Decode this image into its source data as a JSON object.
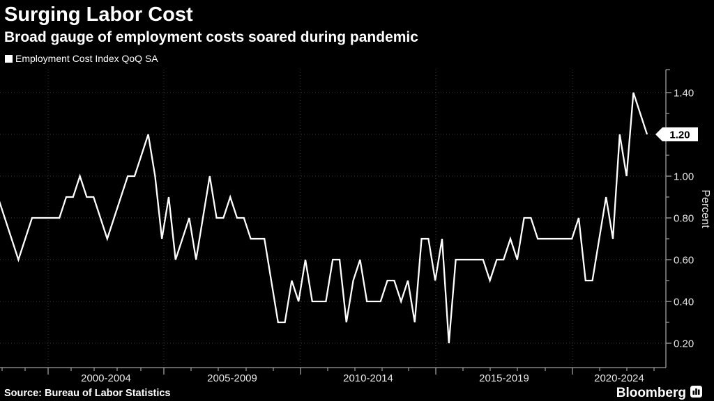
{
  "header": {
    "title": "Surging Labor Cost",
    "subtitle": "Broad gauge of employment costs soared during pandemic"
  },
  "legend": {
    "label": "Employment Cost Index QoQ SA",
    "marker_color": "#ffffff"
  },
  "footer": {
    "source": "Source: Bureau of Labor Statistics",
    "brand": "Bloomberg"
  },
  "chart_data": {
    "type": "line",
    "title": "Employment Cost Index QoQ SA",
    "ylabel": "Percent",
    "ylim": [
      0.1,
      1.47
    ],
    "grid": true,
    "legend_position": "top-left",
    "line_color": "#ffffff",
    "background_color": "#000000",
    "gridline_color": "#3d3d3d",
    "axis_color": "#a0a0a0",
    "tick_label_color": "#e6e6e6",
    "y_major_ticks": [
      "0.20",
      "0.40",
      "0.60",
      "0.80",
      "1.00",
      "1.20",
      "1.40"
    ],
    "y_major_values": [
      0.2,
      0.4,
      0.6,
      0.8,
      1.0,
      1.2,
      1.4
    ],
    "y_minor_values": [
      0.3,
      0.5,
      0.7,
      0.9,
      1.1,
      1.3
    ],
    "x_tick_labels": [
      "2000-2004",
      "2005-2009",
      "2010-2014",
      "2015-2019",
      "2020-2024"
    ],
    "x_frequency": "quarterly",
    "last_value_label": "1.20",
    "last_value": 1.2,
    "peak_value": 1.4,
    "min_value": 0.2,
    "values": [
      0.9,
      0.8,
      0.7,
      0.6,
      0.7,
      0.8,
      0.8,
      0.8,
      0.8,
      0.8,
      0.9,
      0.9,
      1.0,
      0.9,
      0.9,
      0.8,
      0.7,
      0.8,
      0.9,
      1.0,
      1.0,
      1.1,
      1.2,
      1.0,
      0.7,
      0.9,
      0.6,
      0.7,
      0.8,
      0.6,
      0.8,
      1.0,
      0.8,
      0.8,
      0.9,
      0.8,
      0.8,
      0.7,
      0.7,
      0.7,
      0.5,
      0.3,
      0.3,
      0.5,
      0.4,
      0.6,
      0.4,
      0.4,
      0.4,
      0.6,
      0.6,
      0.3,
      0.5,
      0.6,
      0.4,
      0.4,
      0.4,
      0.5,
      0.5,
      0.4,
      0.5,
      0.3,
      0.7,
      0.7,
      0.5,
      0.7,
      0.2,
      0.6,
      0.6,
      0.6,
      0.6,
      0.6,
      0.5,
      0.6,
      0.6,
      0.7,
      0.6,
      0.8,
      0.8,
      0.7,
      0.7,
      0.7,
      0.7,
      0.7,
      0.7,
      0.8,
      0.5,
      0.5,
      0.7,
      0.9,
      0.7,
      1.2,
      1.0,
      1.4,
      1.3,
      1.2
    ]
  }
}
